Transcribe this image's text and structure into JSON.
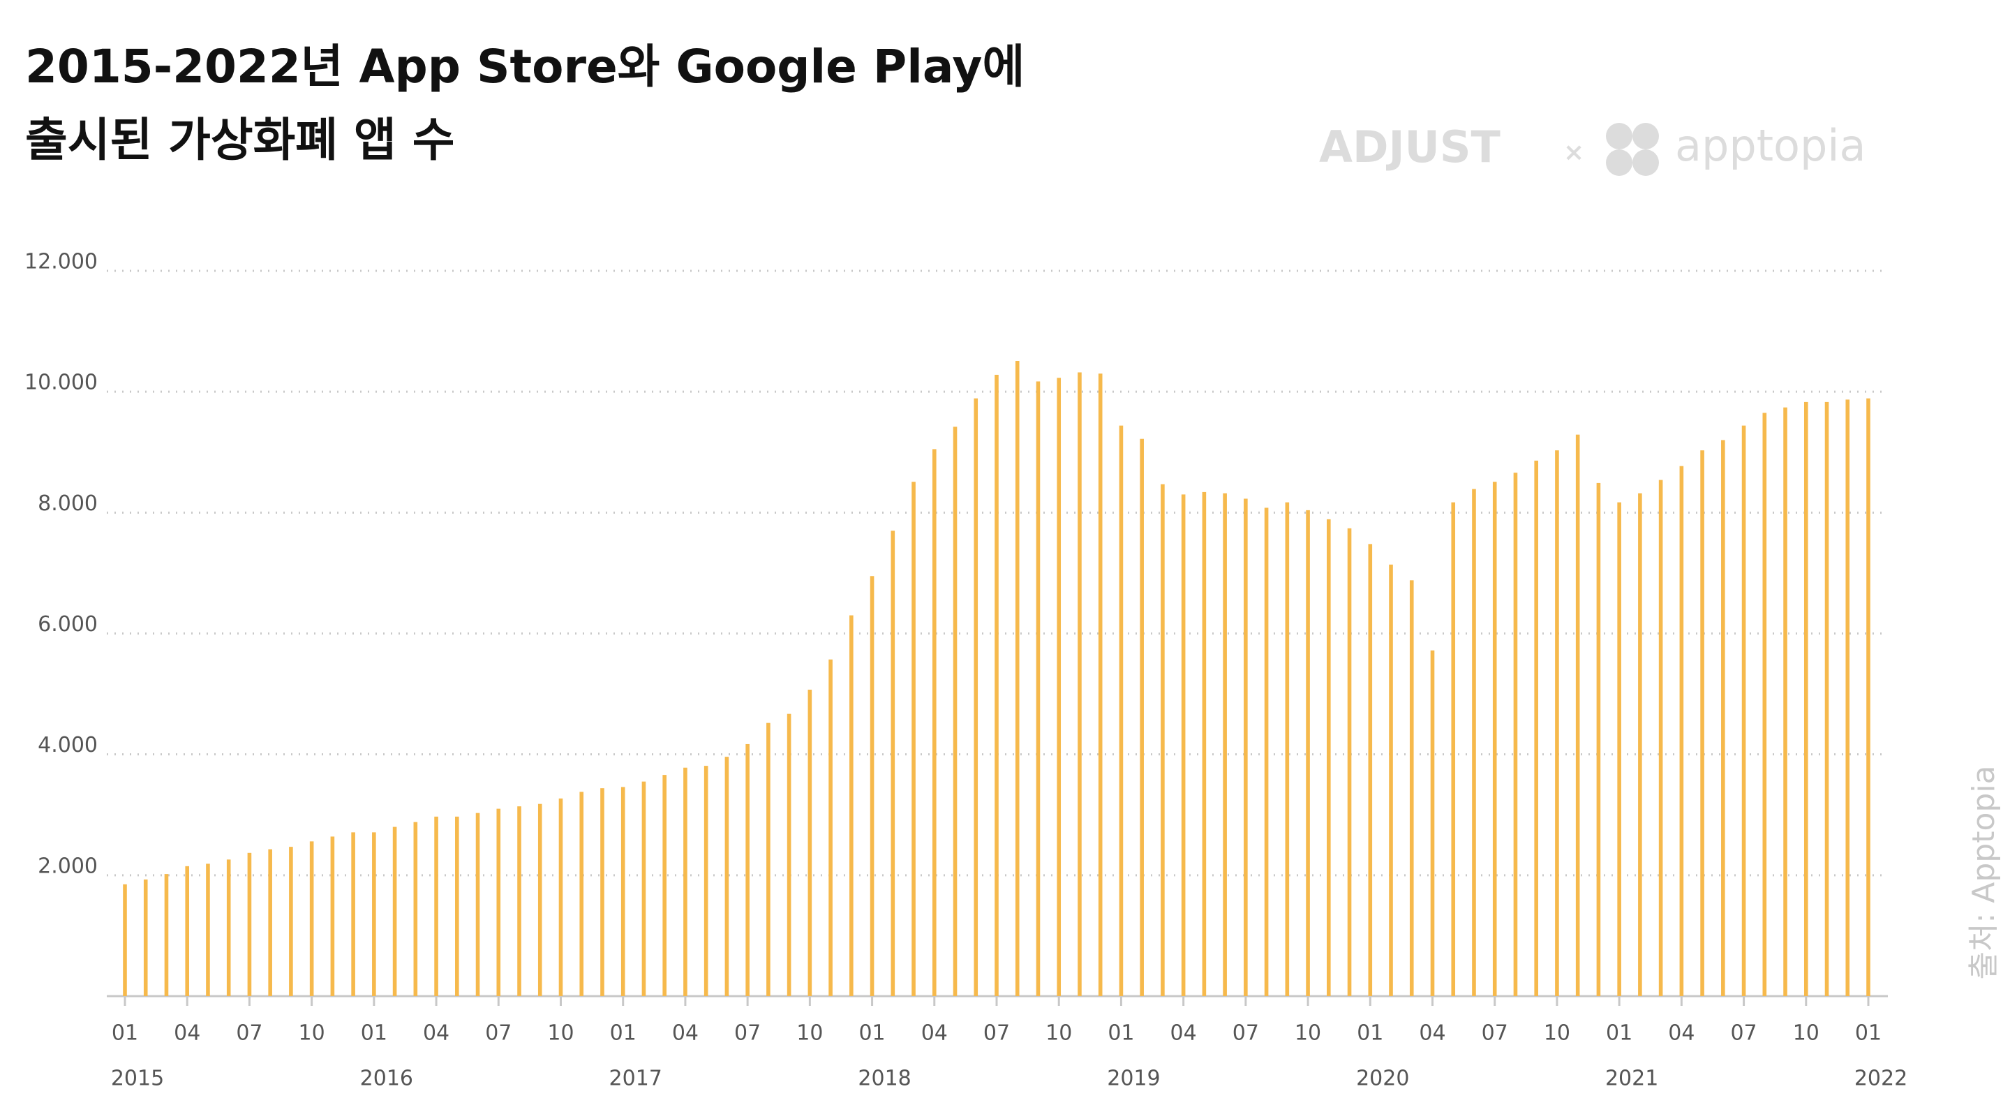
{
  "chart_data": {
    "type": "bar",
    "title": "2015-2022년 App Store와 Google Play에",
    "subtitle": "출시된 가상화폐 앱 수",
    "brands": [
      "ADJUST",
      "×",
      "apptopia"
    ],
    "source": "출처: Apptopia",
    "color": "#f6b94c",
    "grid": true,
    "ylim": [
      0,
      12000
    ],
    "yticks": [
      {
        "value": 2000,
        "label": "2.000"
      },
      {
        "value": 4000,
        "label": "4.000"
      },
      {
        "value": 6000,
        "label": "6.000"
      },
      {
        "value": 8000,
        "label": "8.000"
      },
      {
        "value": 10000,
        "label": "10.000"
      },
      {
        "value": 12000,
        "label": "12.000"
      }
    ],
    "categories": [
      "01",
      null,
      null,
      "04",
      null,
      null,
      "07",
      null,
      null,
      "10",
      null,
      null,
      "01",
      null,
      null,
      "04",
      null,
      null,
      "07",
      null,
      null,
      "10",
      null,
      null,
      "01",
      null,
      null,
      "04",
      null,
      null,
      "07",
      null,
      null,
      "10",
      null,
      null,
      "01",
      null,
      null,
      "04",
      null,
      null,
      "07",
      null,
      null,
      "10",
      null,
      null,
      "01",
      null,
      null,
      "04",
      null,
      null,
      "07",
      null,
      null,
      "10",
      null,
      null,
      "01",
      null,
      null,
      "04",
      null,
      null,
      "07",
      null,
      null,
      "10",
      null,
      null,
      "01",
      null,
      null,
      "04",
      null,
      null,
      "07",
      null,
      null,
      "10",
      null,
      null,
      "01"
    ],
    "year_labels": [
      "2015",
      "2016",
      "2017",
      "2018",
      "2019",
      "2020",
      "2021",
      "2022"
    ],
    "values": [
      1850,
      1930,
      2020,
      2150,
      2190,
      2260,
      2370,
      2430,
      2470,
      2560,
      2640,
      2710,
      2710,
      2800,
      2880,
      2970,
      2970,
      3030,
      3100,
      3140,
      3180,
      3270,
      3380,
      3440,
      3460,
      3550,
      3660,
      3780,
      3810,
      3960,
      4170,
      4520,
      4670,
      5070,
      5570,
      6300,
      6950,
      7700,
      8510,
      9050,
      9420,
      9890,
      10280,
      10510,
      10170,
      10230,
      10320,
      10300,
      9440,
      9220,
      8470,
      8300,
      8340,
      8320,
      8230,
      8080,
      8170,
      8040,
      7890,
      7740,
      7480,
      7140,
      6880,
      5720,
      8170,
      8390,
      8510,
      8660,
      8860,
      9030,
      9290,
      8490,
      8170,
      8320,
      8540,
      8770,
      9030,
      9200,
      9440,
      9650,
      9740,
      9830,
      9830,
      9870,
      9890
    ]
  }
}
